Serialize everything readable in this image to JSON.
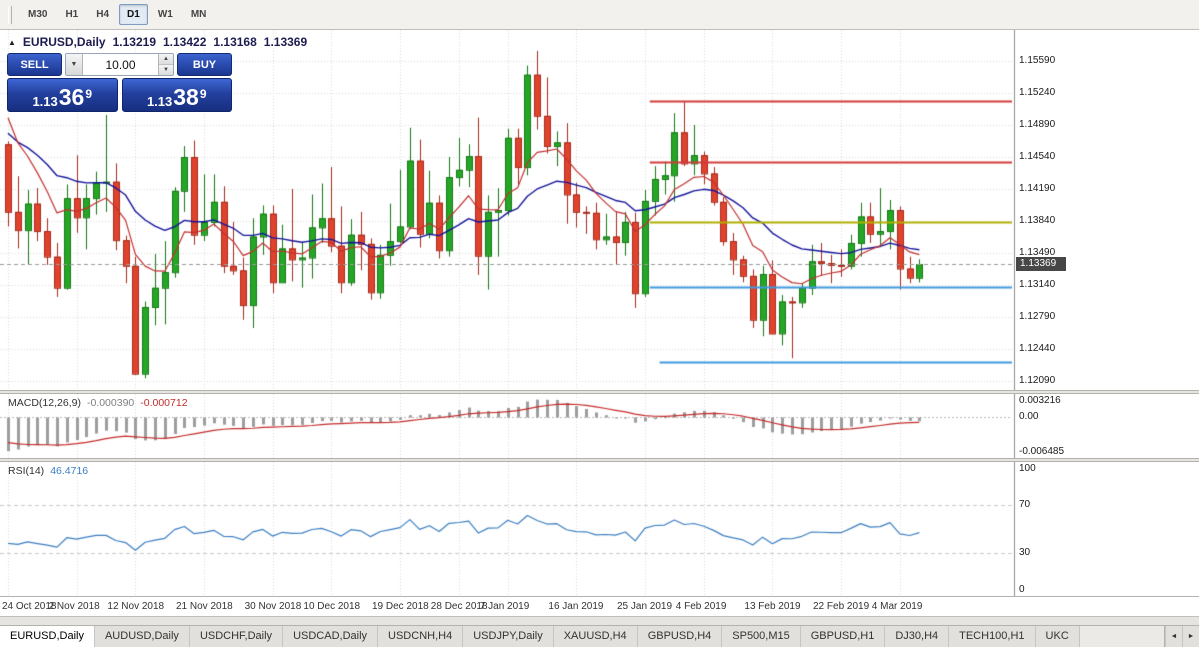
{
  "toolbar": {
    "timeframes": [
      {
        "label": "M30",
        "active": false
      },
      {
        "label": "H1",
        "active": false
      },
      {
        "label": "H4",
        "active": false
      },
      {
        "label": "D1",
        "active": true
      },
      {
        "label": "W1",
        "active": false
      },
      {
        "label": "MN",
        "active": false
      }
    ]
  },
  "chart": {
    "collapse_icon": "▲",
    "title": {
      "symbol": "EURUSD,Daily",
      "open": "1.13219",
      "high": "1.13422",
      "low": "1.13168",
      "close": "1.13369"
    },
    "price_badge": "1.13369"
  },
  "trade_panel": {
    "sell_label": "SELL",
    "buy_label": "BUY",
    "volume": "10.00",
    "volume_dropdown_icon": "▼",
    "spin_up_icon": "▲",
    "spin_down_icon": "▼",
    "sell_price": {
      "prefix": "1.13",
      "big": "36",
      "sup": "9"
    },
    "buy_price": {
      "prefix": "1.13",
      "big": "38",
      "sup": "9"
    }
  },
  "macd_panel": {
    "name": "MACD(12,26,9)",
    "value_main": "-0.000390",
    "value_signal": "-0.000712",
    "scale": [
      "0.003216",
      "0.00",
      "-0.006485"
    ]
  },
  "rsi_panel": {
    "name": "RSI(14)",
    "value": "46.4716",
    "scale": [
      "100",
      "70",
      "30",
      "0"
    ]
  },
  "tabs": {
    "scroll_left_icon": "◄",
    "scroll_right_icon": "►",
    "items": [
      {
        "label": "EURUSD,Daily",
        "active": true
      },
      {
        "label": "AUDUSD,Daily",
        "active": false
      },
      {
        "label": "USDCHF,Daily",
        "active": false
      },
      {
        "label": "USDCAD,Daily",
        "active": false
      },
      {
        "label": "USDCNH,H4",
        "active": false
      },
      {
        "label": "USDJPY,Daily",
        "active": false
      },
      {
        "label": "XAUUSD,H4",
        "active": false
      },
      {
        "label": "GBPUSD,H4",
        "active": false
      },
      {
        "label": "SP500,M15",
        "active": false
      },
      {
        "label": "GBPUSD,H1",
        "active": false
      },
      {
        "label": "DJ30,H4",
        "active": false
      },
      {
        "label": "TECH100,H1",
        "active": false
      },
      {
        "label": "UKC",
        "active": false
      }
    ]
  },
  "colors": {
    "bull": "#26A626",
    "bull_border": "#157815",
    "bear": "#E0432D",
    "bear_border": "#A52A1C",
    "ma_fast": "#C23030",
    "ma_slow": "#14149B",
    "hline_red": "#D23B3B",
    "hline_olive": "#B0B000",
    "hline_blue": "#3E9ADF",
    "macd_hist": "#9E9E9E",
    "macd_signal": "#C42B2B",
    "rsi_line": "#3B7EC0",
    "grid": "#DADADA",
    "badge_bg": "#474747"
  },
  "chart_data": {
    "type": "candlestick",
    "symbol": "EURUSD",
    "timeframe": "Daily",
    "x_labels": [
      "24 Oct 2018",
      "2 Nov 2018",
      "12 Nov 2018",
      "21 Nov 2018",
      "30 Nov 2018",
      "10 Dec 2018",
      "19 Dec 2018",
      "28 Dec 2018",
      "7 Jan 2019",
      "16 Jan 2019",
      "25 Jan 2019",
      "4 Feb 2019",
      "13 Feb 2019",
      "22 Feb 2019",
      "4 Mar 2019"
    ],
    "x_label_indices": [
      0,
      7,
      13,
      20,
      27,
      33,
      40,
      46,
      51,
      58,
      65,
      71,
      78,
      85,
      91
    ],
    "y_ticks": [
      "1.15590",
      "1.15240",
      "1.14890",
      "1.14540",
      "1.14190",
      "1.13840",
      "1.13490",
      "1.13140",
      "1.12790",
      "1.12440",
      "1.12090"
    ],
    "y_range": [
      1.11992,
      1.15929
    ],
    "current_price": 1.13369,
    "ohlc": [
      [
        1.1468,
        1.1471,
        1.1378,
        1.1394
      ],
      [
        1.1394,
        1.1433,
        1.1354,
        1.1374
      ],
      [
        1.1374,
        1.1418,
        1.1336,
        1.1403
      ],
      [
        1.1403,
        1.142,
        1.1362,
        1.1373
      ],
      [
        1.1373,
        1.1387,
        1.1336,
        1.1345
      ],
      [
        1.1345,
        1.136,
        1.1301,
        1.1311
      ],
      [
        1.1311,
        1.1424,
        1.1309,
        1.1409
      ],
      [
        1.1409,
        1.1456,
        1.1371,
        1.1388
      ],
      [
        1.1388,
        1.1424,
        1.1353,
        1.1409
      ],
      [
        1.1409,
        1.1438,
        1.1391,
        1.1426
      ],
      [
        1.1426,
        1.15,
        1.1394,
        1.1427
      ],
      [
        1.1427,
        1.1447,
        1.1352,
        1.1363
      ],
      [
        1.1363,
        1.1368,
        1.1316,
        1.1335
      ],
      [
        1.1335,
        1.1345,
        1.1216,
        1.1217
      ],
      [
        1.1217,
        1.1296,
        1.1212,
        1.129
      ],
      [
        1.129,
        1.1348,
        1.127,
        1.1311
      ],
      [
        1.1311,
        1.1362,
        1.1271,
        1.1328
      ],
      [
        1.1328,
        1.1421,
        1.1322,
        1.1417
      ],
      [
        1.1417,
        1.1466,
        1.1394,
        1.1454
      ],
      [
        1.1454,
        1.1472,
        1.1358,
        1.1369
      ],
      [
        1.1369,
        1.1435,
        1.1362,
        1.1383
      ],
      [
        1.1383,
        1.1435,
        1.1378,
        1.1405
      ],
      [
        1.1405,
        1.1422,
        1.1327,
        1.1335
      ],
      [
        1.1335,
        1.1383,
        1.1325,
        1.133
      ],
      [
        1.133,
        1.1344,
        1.1276,
        1.1292
      ],
      [
        1.1292,
        1.1387,
        1.1267,
        1.1367
      ],
      [
        1.1367,
        1.1401,
        1.1347,
        1.1392
      ],
      [
        1.1392,
        1.1401,
        1.1305,
        1.1317
      ],
      [
        1.1317,
        1.138,
        1.1317,
        1.1354
      ],
      [
        1.1354,
        1.1419,
        1.1318,
        1.1342
      ],
      [
        1.1342,
        1.1361,
        1.1311,
        1.1344
      ],
      [
        1.1344,
        1.1413,
        1.1321,
        1.1377
      ],
      [
        1.1377,
        1.1425,
        1.136,
        1.1387
      ],
      [
        1.1387,
        1.1443,
        1.135,
        1.1357
      ],
      [
        1.1357,
        1.14,
        1.1305,
        1.1317
      ],
      [
        1.1317,
        1.1386,
        1.1313,
        1.1369
      ],
      [
        1.1369,
        1.1394,
        1.133,
        1.1359
      ],
      [
        1.1359,
        1.1365,
        1.1298,
        1.1306
      ],
      [
        1.1306,
        1.1358,
        1.1299,
        1.1347
      ],
      [
        1.1347,
        1.1403,
        1.1335,
        1.1362
      ],
      [
        1.1362,
        1.144,
        1.136,
        1.1378
      ],
      [
        1.1378,
        1.1486,
        1.1375,
        1.145
      ],
      [
        1.145,
        1.1473,
        1.1355,
        1.137
      ],
      [
        1.137,
        1.1439,
        1.1365,
        1.1404
      ],
      [
        1.1404,
        1.1412,
        1.1343,
        1.1352
      ],
      [
        1.1352,
        1.1454,
        1.1345,
        1.1432
      ],
      [
        1.1432,
        1.1475,
        1.1422,
        1.144
      ],
      [
        1.144,
        1.1468,
        1.1421,
        1.1455
      ],
      [
        1.1455,
        1.1497,
        1.1325,
        1.1346
      ],
      [
        1.1346,
        1.1412,
        1.1309,
        1.1394
      ],
      [
        1.1394,
        1.142,
        1.1345,
        1.1396
      ],
      [
        1.1396,
        1.1485,
        1.139,
        1.1475
      ],
      [
        1.1475,
        1.1485,
        1.1422,
        1.1443
      ],
      [
        1.1443,
        1.1554,
        1.1434,
        1.1544
      ],
      [
        1.1544,
        1.157,
        1.1484,
        1.1499
      ],
      [
        1.1499,
        1.1541,
        1.1458,
        1.1466
      ],
      [
        1.1466,
        1.1482,
        1.1444,
        1.147
      ],
      [
        1.147,
        1.1491,
        1.1381,
        1.1413
      ],
      [
        1.1413,
        1.1426,
        1.1377,
        1.1394
      ],
      [
        1.1394,
        1.14,
        1.137,
        1.1393
      ],
      [
        1.1393,
        1.1404,
        1.1353,
        1.1364
      ],
      [
        1.1364,
        1.1392,
        1.1358,
        1.1367
      ],
      [
        1.1367,
        1.1394,
        1.1336,
        1.1361
      ],
      [
        1.1361,
        1.1394,
        1.1346,
        1.1383
      ],
      [
        1.1383,
        1.1393,
        1.1289,
        1.1305
      ],
      [
        1.1305,
        1.1418,
        1.1301,
        1.1406
      ],
      [
        1.1406,
        1.1444,
        1.139,
        1.143
      ],
      [
        1.143,
        1.1449,
        1.1413,
        1.1434
      ],
      [
        1.1434,
        1.1502,
        1.1405,
        1.1481
      ],
      [
        1.1481,
        1.1514,
        1.1444,
        1.1447
      ],
      [
        1.1447,
        1.1489,
        1.1434,
        1.1456
      ],
      [
        1.1456,
        1.146,
        1.1424,
        1.1436
      ],
      [
        1.1436,
        1.1443,
        1.1401,
        1.1405
      ],
      [
        1.1405,
        1.141,
        1.1357,
        1.1362
      ],
      [
        1.1362,
        1.1371,
        1.1325,
        1.1342
      ],
      [
        1.1342,
        1.1346,
        1.1317,
        1.1324
      ],
      [
        1.1324,
        1.1331,
        1.1267,
        1.1276
      ],
      [
        1.1276,
        1.1335,
        1.1258,
        1.1326
      ],
      [
        1.1326,
        1.1341,
        1.126,
        1.1261
      ],
      [
        1.1261,
        1.1303,
        1.1248,
        1.1296
      ],
      [
        1.1296,
        1.1301,
        1.1234,
        1.1295
      ],
      [
        1.1295,
        1.1316,
        1.1289,
        1.1311
      ],
      [
        1.1311,
        1.1358,
        1.1303,
        1.134
      ],
      [
        1.134,
        1.136,
        1.1324,
        1.1338
      ],
      [
        1.1338,
        1.1347,
        1.1316,
        1.1336
      ],
      [
        1.1336,
        1.1353,
        1.1323,
        1.1335
      ],
      [
        1.1335,
        1.1369,
        1.1331,
        1.136
      ],
      [
        1.136,
        1.1404,
        1.1345,
        1.1389
      ],
      [
        1.1389,
        1.1404,
        1.136,
        1.137
      ],
      [
        1.137,
        1.142,
        1.1358,
        1.1373
      ],
      [
        1.1373,
        1.1407,
        1.1353,
        1.1396
      ],
      [
        1.1396,
        1.14,
        1.1309,
        1.1332
      ],
      [
        1.1332,
        1.1345,
        1.1316,
        1.1322
      ],
      [
        1.13219,
        1.13422,
        1.13168,
        1.13369
      ]
    ],
    "overlays": {
      "ma_fast": {
        "type": "ema",
        "period": 8,
        "seed": 1.1497
      },
      "ma_slow": {
        "type": "ema",
        "period": 21,
        "seed": 1.148
      }
    },
    "hlines": [
      {
        "price": 1.1515,
        "color_key": "hline_red",
        "from_index": 66
      },
      {
        "price": 1.1449,
        "color_key": "hline_red",
        "from_index": 66
      },
      {
        "price": 1.1383,
        "color_key": "hline_olive",
        "from_index": 66
      },
      {
        "price": 1.1312,
        "color_key": "hline_blue",
        "from_index": 66
      },
      {
        "price": 1.123,
        "color_key": "hline_blue",
        "from_index": 67
      }
    ],
    "macd": {
      "fast": 12,
      "slow": 26,
      "signal": 9,
      "seed_macd": -0.006,
      "seed_signal": -0.0045,
      "current_macd": -0.00039,
      "current_signal": -0.000712,
      "y_range": [
        -0.0072,
        0.004
      ]
    },
    "rsi": {
      "period": 14,
      "seed_avg_gain": 0.0026,
      "seed_avg_loss": 0.0042,
      "current": 46.4716,
      "levels": [
        70,
        30
      ],
      "y_range": [
        -5,
        105
      ]
    }
  }
}
